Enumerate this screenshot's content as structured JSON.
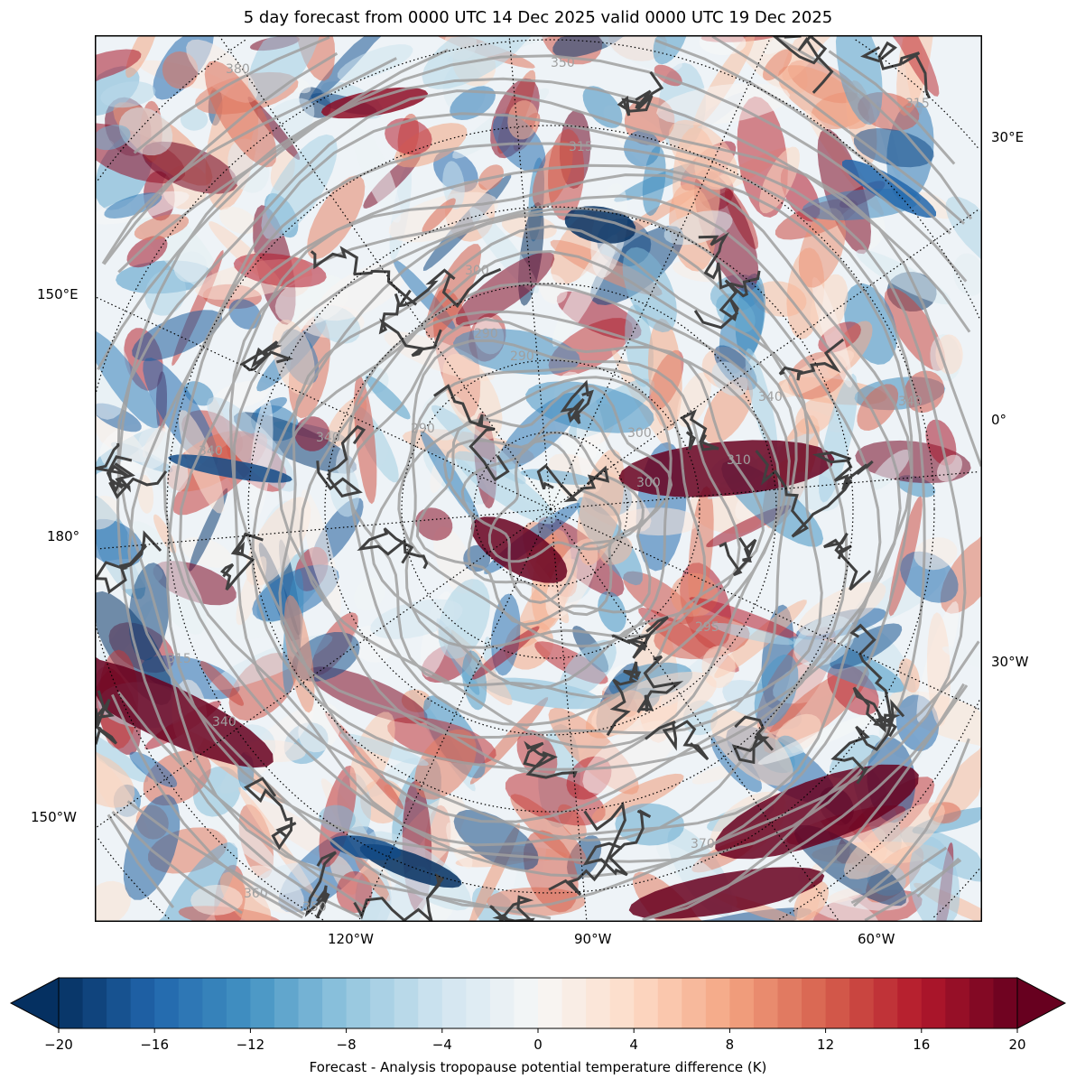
{
  "title": "5 day forecast from 0000 UTC 14 Dec 2025 valid 0000 UTC 19 Dec 2025",
  "map": {
    "projection": "north-polar-stereographic",
    "left_labels": [
      "150°E",
      "180°",
      "150°W"
    ],
    "right_labels": [
      "30°E",
      "0°",
      "30°W"
    ],
    "bottom_labels": [
      "120°W",
      "90°W",
      "60°W"
    ],
    "contour_labels": [
      "380",
      "350",
      "315",
      "315",
      "300",
      "290",
      "290",
      "290",
      "300",
      "310",
      "300",
      "340",
      "340",
      "340",
      "315",
      "340",
      "360",
      "350",
      "370",
      "295",
      "340"
    ],
    "contour_color": "#a0a0a0",
    "coast_color": "#404040"
  },
  "colorbar": {
    "label": "Forecast - Analysis tropopause potential temperature difference (K)",
    "ticks": [
      "−20",
      "−16",
      "−12",
      "−8",
      "−4",
      "0",
      "4",
      "8",
      "12",
      "16",
      "20"
    ],
    "range": [
      -20,
      20
    ],
    "step": 1,
    "extend": "both",
    "colormap": "RdBu_r"
  }
}
